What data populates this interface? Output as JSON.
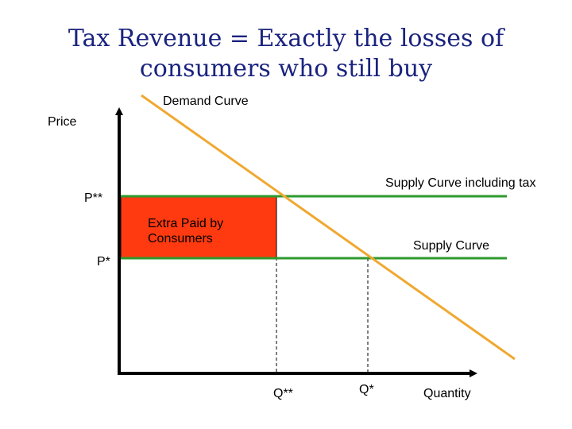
{
  "title": {
    "line1": "Tax Revenue = Exactly the losses of",
    "line2": "consumers who still buy"
  },
  "labels": {
    "demand_curve": "Demand Curve",
    "price_axis": "Price",
    "quantity_axis": "Quantity",
    "supply_with_tax": "Supply Curve including tax",
    "supply": "Supply Curve",
    "p_double_star": "P**",
    "p_star": "P*",
    "q_double_star": "Q**",
    "q_star": "Q*",
    "extra_paid_line1": "Extra Paid by",
    "extra_paid_line2": "Consumers"
  },
  "colors": {
    "title": "#1a237e",
    "demand": "#f0a830",
    "supply": "#2e9a2e",
    "extra_paid_fill": "#ff3a10",
    "axes": "#000000"
  }
}
